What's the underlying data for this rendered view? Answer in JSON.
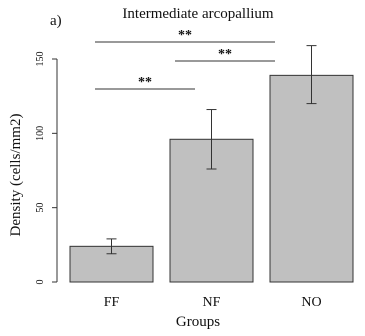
{
  "chart_data": {
    "type": "bar",
    "panel_label": "a)",
    "title": "Intermediate arcopallium",
    "xlabel": "Groups",
    "ylabel": "Density (cells/mm2)",
    "categories": [
      "FF",
      "NF",
      "NO"
    ],
    "values": [
      24,
      96,
      139
    ],
    "error_low": [
      19,
      76,
      120
    ],
    "error_high": [
      29,
      116,
      159
    ],
    "ylim": [
      0,
      160
    ],
    "yticks": [
      0,
      50,
      100,
      150
    ],
    "bar_color": "#c0c0c0",
    "edge_color": "#333333",
    "grid": false,
    "significance": [
      {
        "from": "FF",
        "to": "NF",
        "label": "**"
      },
      {
        "from": "NF",
        "to": "NO",
        "label": "**"
      },
      {
        "from": "FF",
        "to": "NO",
        "label": "**"
      }
    ]
  }
}
